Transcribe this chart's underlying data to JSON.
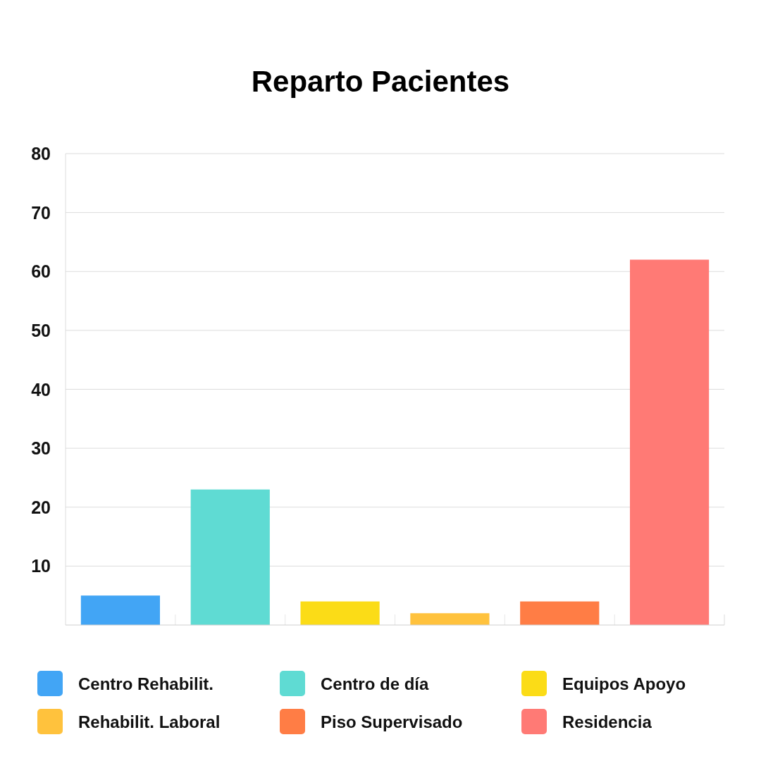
{
  "chart_data": {
    "type": "bar",
    "title": "Reparto Pacientes",
    "categories": [
      null
    ],
    "series": [
      {
        "name": "Centro Rehabilit.",
        "color": "#42a5f5",
        "values": [
          5
        ]
      },
      {
        "name": "Centro de día",
        "color": "#5fdbd3",
        "values": [
          23
        ]
      },
      {
        "name": "Equipos Apoyo",
        "color": "#fbdc17",
        "values": [
          4
        ]
      },
      {
        "name": "Rehabilit. Laboral",
        "color": "#ffc23d",
        "values": [
          2
        ]
      },
      {
        "name": "Piso Supervisado",
        "color": "#ff7d45",
        "values": [
          4
        ]
      },
      {
        "name": "Residencia",
        "color": "#ff7a75",
        "values": [
          62
        ]
      }
    ],
    "ylim": [
      0,
      80
    ],
    "yticks": [
      10,
      20,
      30,
      40,
      50,
      60,
      70,
      80
    ],
    "grid": "y",
    "legend": "bottom",
    "tick_labels": "y"
  }
}
